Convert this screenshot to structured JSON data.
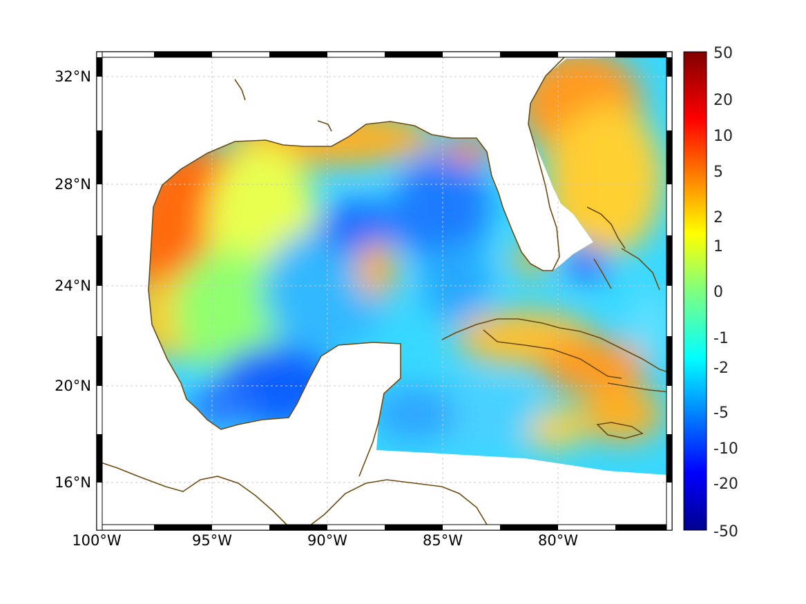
{
  "map": {
    "projection": "mercator",
    "lon_range": [
      -100,
      -75.2
    ],
    "lat_range": [
      14.2,
      33.0
    ],
    "grid": "dashed",
    "frame": "black-white checkered border",
    "colormap": "jet",
    "land_color": "#ffffff",
    "coastline_color": "#6b4a10"
  },
  "axes": {
    "lon_ticks": [
      {
        "value": -100,
        "label": "100°W"
      },
      {
        "value": -95,
        "label": "95°W"
      },
      {
        "value": -90,
        "label": "90°W"
      },
      {
        "value": -85,
        "label": "85°W"
      },
      {
        "value": -80,
        "label": "80°W"
      }
    ],
    "lat_ticks": [
      {
        "value": 32,
        "label": "32°N"
      },
      {
        "value": 28,
        "label": "28°N"
      },
      {
        "value": 24,
        "label": "24°N"
      },
      {
        "value": 20,
        "label": "20°N"
      },
      {
        "value": 16,
        "label": "16°N"
      }
    ]
  },
  "colorbar": {
    "scale": "symmetric-nonlinear",
    "ticks": [
      {
        "value": 50,
        "label": "50"
      },
      {
        "value": 20,
        "label": "20"
      },
      {
        "value": 10,
        "label": "10"
      },
      {
        "value": 5,
        "label": "5"
      },
      {
        "value": 2,
        "label": "2"
      },
      {
        "value": 1,
        "label": "1"
      },
      {
        "value": 0,
        "label": "0"
      },
      {
        "value": -1,
        "label": "-1"
      },
      {
        "value": -2,
        "label": "-2"
      },
      {
        "value": -5,
        "label": "-5"
      },
      {
        "value": -10,
        "label": "-10"
      },
      {
        "value": -20,
        "label": "-20"
      },
      {
        "value": -50,
        "label": "-50"
      }
    ]
  },
  "field_regions": [
    {
      "region": "western Gulf shelf (Texas/Tamaulipas)",
      "level": 5
    },
    {
      "region": "northern Gulf coast",
      "level": 3
    },
    {
      "region": "central Gulf",
      "level": -2
    },
    {
      "region": "Bay of Campeche",
      "level": -5
    },
    {
      "region": "eastern Gulf / Loop Current",
      "level": -4
    },
    {
      "region": "Atlantic east of Florida",
      "level": 3
    },
    {
      "region": "south of Cuba",
      "level": 3
    },
    {
      "region": "western Caribbean",
      "level": -2
    }
  ]
}
